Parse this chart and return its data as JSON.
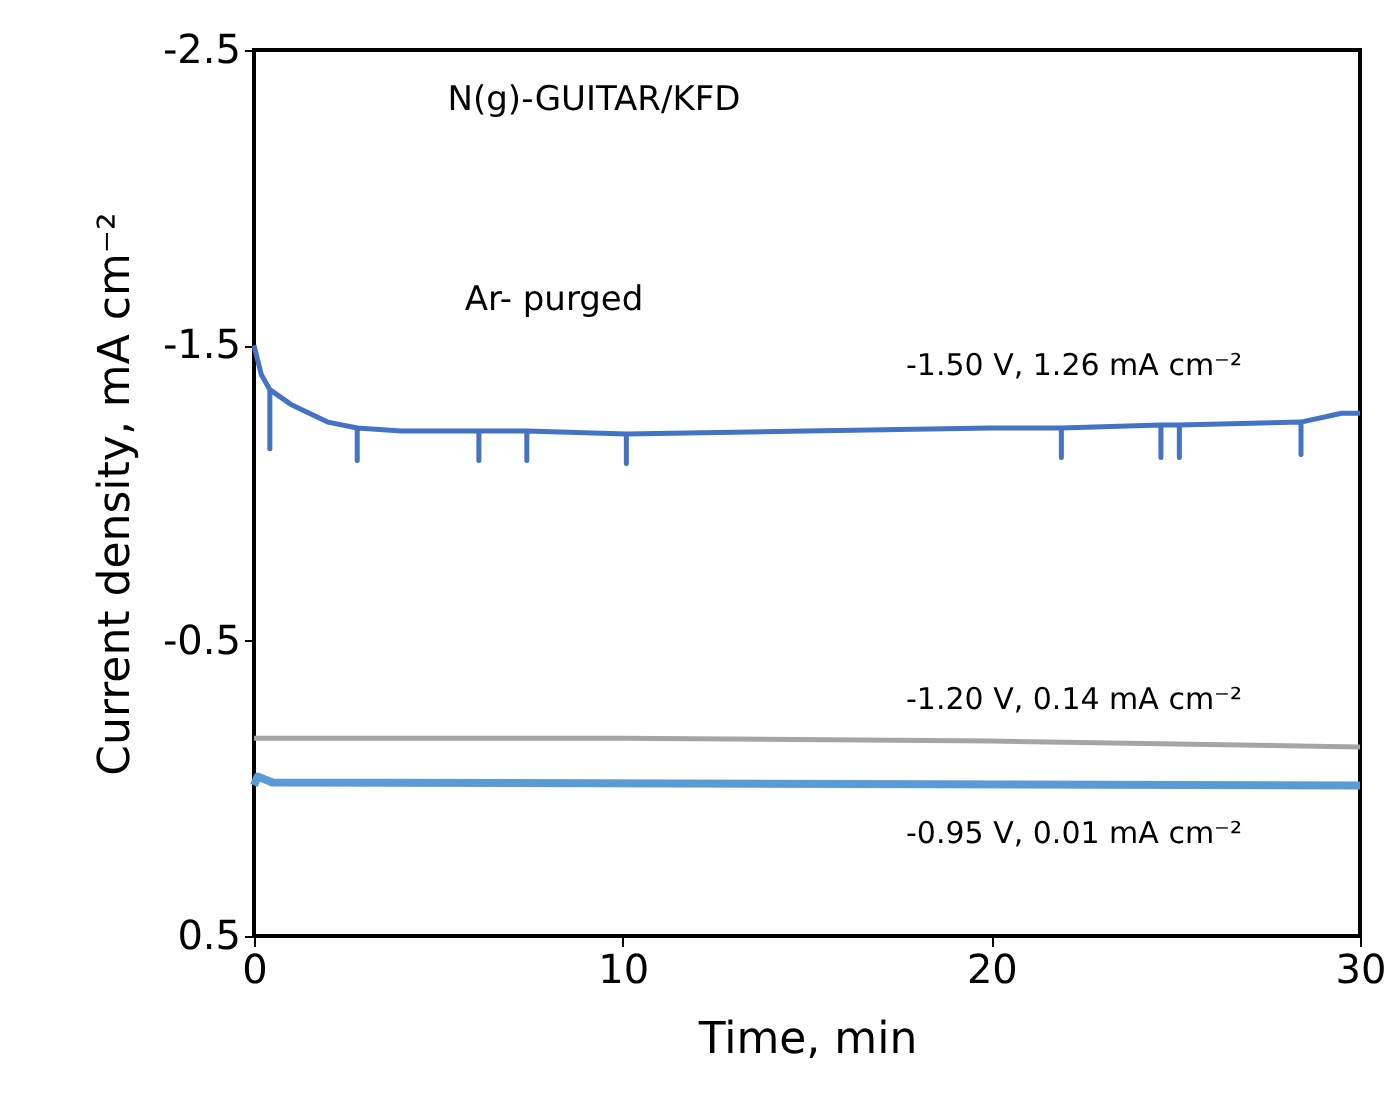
{
  "chart_data": {
    "type": "line",
    "xlabel": "Time, min",
    "ylabel": "Current density, mA cm⁻²",
    "annotations": [
      "N(g)-GUITAR/KFD",
      "Ar- purged"
    ],
    "xlim": [
      0,
      30
    ],
    "xticks": [
      0,
      10,
      20,
      30
    ],
    "ylim": [
      0.5,
      -2.5
    ],
    "yticks": [
      -2.5,
      -1.5,
      -0.5,
      0.5
    ],
    "grid": false,
    "series": [
      {
        "name": "-1.50 V, 1.26 mA cm⁻²",
        "color": "#4472c4",
        "x": [
          0,
          0.2,
          0.43,
          0.43,
          0.43,
          1,
          2,
          2.8,
          2.8,
          2.8,
          4,
          6.1,
          6.1,
          6.1,
          7.4,
          7.4,
          7.4,
          10.1,
          10.1,
          10.1,
          15,
          20,
          21.9,
          21.9,
          21.9,
          24.6,
          24.6,
          24.6,
          25.1,
          25.1,
          25.1,
          28.4,
          28.4,
          28.4,
          29.5,
          30
        ],
        "values": [
          -1.5,
          -1.4,
          -1.35,
          -1.15,
          -1.35,
          -1.3,
          -1.24,
          -1.22,
          -1.11,
          -1.22,
          -1.21,
          -1.21,
          -1.11,
          -1.21,
          -1.21,
          -1.11,
          -1.21,
          -1.2,
          -1.1,
          -1.2,
          -1.21,
          -1.22,
          -1.22,
          -1.12,
          -1.22,
          -1.23,
          -1.12,
          -1.23,
          -1.23,
          -1.12,
          -1.23,
          -1.24,
          -1.13,
          -1.24,
          -1.27,
          -1.27
        ]
      },
      {
        "name": "-1.20 V, 0.14 mA cm⁻²",
        "color": "#a5a5a5",
        "x": [
          0,
          10,
          20,
          30
        ],
        "values": [
          -0.17,
          -0.17,
          -0.16,
          -0.14
        ]
      },
      {
        "name": "-0.95 V, 0.01 mA cm⁻²",
        "color": "#5b9bd5",
        "x": [
          0,
          0.1,
          0.5,
          30
        ],
        "values": [
          -0.01,
          -0.04,
          -0.02,
          -0.01
        ]
      }
    ]
  }
}
